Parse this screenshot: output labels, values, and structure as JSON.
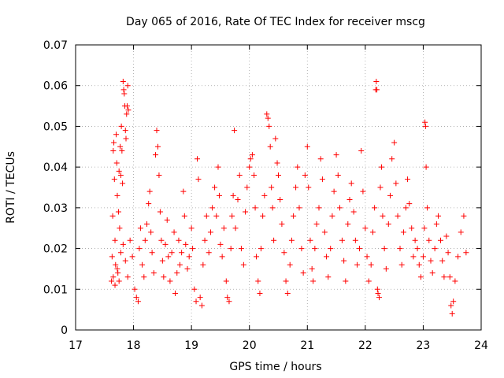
{
  "chart_data": {
    "type": "scatter",
    "title": "Day 065 of 2016, Rate Of TEC Index for receiver mscg",
    "xlabel": "GPS time / hours",
    "ylabel": "ROTI / TECUs",
    "xlim": [
      17,
      24
    ],
    "ylim": [
      0,
      0.07
    ],
    "xticks": [
      17,
      18,
      19,
      20,
      21,
      22,
      23,
      24
    ],
    "yticks": [
      0,
      0.01,
      0.02,
      0.03,
      0.04,
      0.05,
      0.06,
      0.07
    ],
    "xtick_labels": [
      "17",
      "18",
      "19",
      "20",
      "21",
      "22",
      "23",
      "24"
    ],
    "ytick_labels": [
      "0",
      "0.01",
      "0.02",
      "0.03",
      "0.04",
      "0.05",
      "0.06",
      "0.07"
    ],
    "grid": true,
    "marker": "+",
    "color": "#ff0000",
    "series": [
      {
        "name": "mscg",
        "points": [
          [
            17.62,
            0.012
          ],
          [
            17.63,
            0.018
          ],
          [
            17.64,
            0.028
          ],
          [
            17.65,
            0.044
          ],
          [
            17.66,
            0.046
          ],
          [
            17.67,
            0.037
          ],
          [
            17.68,
            0.022
          ],
          [
            17.69,
            0.016
          ],
          [
            17.7,
            0.048
          ],
          [
            17.71,
            0.041
          ],
          [
            17.72,
            0.033
          ],
          [
            17.73,
            0.014
          ],
          [
            17.74,
            0.029
          ],
          [
            17.75,
            0.039
          ],
          [
            17.76,
            0.025
          ],
          [
            17.77,
            0.045
          ],
          [
            17.78,
            0.038
          ],
          [
            17.79,
            0.05
          ],
          [
            17.8,
            0.044
          ],
          [
            17.81,
            0.036
          ],
          [
            17.82,
            0.061
          ],
          [
            17.83,
            0.059
          ],
          [
            17.84,
            0.058
          ],
          [
            17.85,
            0.055
          ],
          [
            17.86,
            0.049
          ],
          [
            17.87,
            0.047
          ],
          [
            17.88,
            0.053
          ],
          [
            17.89,
            0.055
          ],
          [
            17.9,
            0.06
          ],
          [
            17.91,
            0.054
          ],
          [
            17.65,
            0.013
          ],
          [
            17.68,
            0.011
          ],
          [
            17.72,
            0.015
          ],
          [
            17.75,
            0.012
          ],
          [
            17.78,
            0.019
          ],
          [
            17.82,
            0.021
          ],
          [
            17.86,
            0.017
          ],
          [
            17.9,
            0.013
          ],
          [
            17.94,
            0.022
          ],
          [
            17.98,
            0.018
          ],
          [
            18.02,
            0.01
          ],
          [
            18.05,
            0.008
          ],
          [
            18.08,
            0.007
          ],
          [
            18.1,
            0.02
          ],
          [
            18.12,
            0.025
          ],
          [
            18.15,
            0.016
          ],
          [
            18.18,
            0.013
          ],
          [
            18.2,
            0.022
          ],
          [
            18.23,
            0.026
          ],
          [
            18.26,
            0.031
          ],
          [
            18.28,
            0.034
          ],
          [
            18.3,
            0.024
          ],
          [
            18.32,
            0.019
          ],
          [
            18.35,
            0.014
          ],
          [
            18.38,
            0.043
          ],
          [
            18.4,
            0.049
          ],
          [
            18.42,
            0.045
          ],
          [
            18.44,
            0.038
          ],
          [
            18.46,
            0.029
          ],
          [
            18.48,
            0.022
          ],
          [
            18.5,
            0.017
          ],
          [
            18.52,
            0.013
          ],
          [
            18.55,
            0.021
          ],
          [
            18.58,
            0.027
          ],
          [
            18.6,
            0.018
          ],
          [
            18.63,
            0.012
          ],
          [
            18.66,
            0.019
          ],
          [
            18.7,
            0.024
          ],
          [
            18.72,
            0.009
          ],
          [
            18.75,
            0.014
          ],
          [
            18.78,
            0.022
          ],
          [
            18.8,
            0.016
          ],
          [
            18.83,
            0.019
          ],
          [
            18.86,
            0.034
          ],
          [
            18.88,
            0.028
          ],
          [
            18.9,
            0.021
          ],
          [
            18.93,
            0.015
          ],
          [
            18.96,
            0.018
          ],
          [
            19.0,
            0.025
          ],
          [
            19.02,
            0.02
          ],
          [
            19.05,
            0.01
          ],
          [
            19.08,
            0.007
          ],
          [
            19.1,
            0.042
          ],
          [
            19.12,
            0.037
          ],
          [
            19.15,
            0.008
          ],
          [
            19.18,
            0.006
          ],
          [
            19.2,
            0.016
          ],
          [
            19.23,
            0.022
          ],
          [
            19.26,
            0.028
          ],
          [
            19.3,
            0.019
          ],
          [
            19.33,
            0.024
          ],
          [
            19.36,
            0.03
          ],
          [
            19.4,
            0.035
          ],
          [
            19.43,
            0.028
          ],
          [
            19.46,
            0.04
          ],
          [
            19.48,
            0.033
          ],
          [
            19.5,
            0.021
          ],
          [
            19.53,
            0.018
          ],
          [
            19.56,
            0.025
          ],
          [
            19.6,
            0.012
          ],
          [
            19.62,
            0.008
          ],
          [
            19.65,
            0.007
          ],
          [
            19.68,
            0.02
          ],
          [
            19.7,
            0.028
          ],
          [
            19.72,
            0.033
          ],
          [
            19.74,
            0.049
          ],
          [
            19.76,
            0.025
          ],
          [
            19.8,
            0.032
          ],
          [
            19.83,
            0.038
          ],
          [
            19.86,
            0.02
          ],
          [
            19.9,
            0.016
          ],
          [
            19.93,
            0.029
          ],
          [
            19.96,
            0.035
          ],
          [
            20.0,
            0.04
          ],
          [
            20.02,
            0.042
          ],
          [
            20.05,
            0.043
          ],
          [
            20.08,
            0.038
          ],
          [
            20.1,
            0.03
          ],
          [
            20.12,
            0.018
          ],
          [
            20.15,
            0.012
          ],
          [
            20.18,
            0.009
          ],
          [
            20.2,
            0.02
          ],
          [
            20.23,
            0.028
          ],
          [
            20.26,
            0.033
          ],
          [
            20.3,
            0.053
          ],
          [
            20.32,
            0.052
          ],
          [
            20.34,
            0.05
          ],
          [
            20.36,
            0.045
          ],
          [
            20.38,
            0.035
          ],
          [
            20.4,
            0.03
          ],
          [
            20.42,
            0.022
          ],
          [
            20.45,
            0.047
          ],
          [
            20.48,
            0.041
          ],
          [
            20.5,
            0.038
          ],
          [
            20.53,
            0.032
          ],
          [
            20.56,
            0.026
          ],
          [
            20.6,
            0.019
          ],
          [
            20.63,
            0.012
          ],
          [
            20.66,
            0.009
          ],
          [
            20.7,
            0.016
          ],
          [
            20.73,
            0.022
          ],
          [
            20.76,
            0.028
          ],
          [
            20.8,
            0.035
          ],
          [
            20.83,
            0.04
          ],
          [
            20.86,
            0.03
          ],
          [
            20.9,
            0.02
          ],
          [
            20.93,
            0.014
          ],
          [
            20.96,
            0.038
          ],
          [
            21.0,
            0.045
          ],
          [
            21.02,
            0.035
          ],
          [
            21.05,
            0.022
          ],
          [
            21.08,
            0.015
          ],
          [
            21.1,
            0.012
          ],
          [
            21.13,
            0.02
          ],
          [
            21.16,
            0.026
          ],
          [
            21.2,
            0.03
          ],
          [
            21.23,
            0.042
          ],
          [
            21.26,
            0.037
          ],
          [
            21.3,
            0.024
          ],
          [
            21.33,
            0.018
          ],
          [
            21.36,
            0.013
          ],
          [
            21.4,
            0.02
          ],
          [
            21.43,
            0.028
          ],
          [
            21.46,
            0.034
          ],
          [
            21.5,
            0.043
          ],
          [
            21.53,
            0.038
          ],
          [
            21.56,
            0.03
          ],
          [
            21.6,
            0.022
          ],
          [
            21.63,
            0.017
          ],
          [
            21.66,
            0.012
          ],
          [
            21.7,
            0.026
          ],
          [
            21.73,
            0.032
          ],
          [
            21.76,
            0.036
          ],
          [
            21.8,
            0.029
          ],
          [
            21.83,
            0.022
          ],
          [
            21.86,
            0.016
          ],
          [
            21.9,
            0.02
          ],
          [
            21.93,
            0.044
          ],
          [
            21.96,
            0.034
          ],
          [
            22.0,
            0.025
          ],
          [
            22.03,
            0.018
          ],
          [
            22.06,
            0.012
          ],
          [
            22.1,
            0.016
          ],
          [
            22.13,
            0.024
          ],
          [
            22.16,
            0.03
          ],
          [
            22.18,
            0.059
          ],
          [
            22.19,
            0.061
          ],
          [
            22.2,
            0.059
          ],
          [
            22.21,
            0.01
          ],
          [
            22.22,
            0.009
          ],
          [
            22.24,
            0.008
          ],
          [
            22.26,
            0.035
          ],
          [
            22.28,
            0.04
          ],
          [
            22.3,
            0.028
          ],
          [
            22.33,
            0.02
          ],
          [
            22.36,
            0.015
          ],
          [
            22.4,
            0.026
          ],
          [
            22.43,
            0.033
          ],
          [
            22.46,
            0.042
          ],
          [
            22.5,
            0.046
          ],
          [
            22.53,
            0.036
          ],
          [
            22.56,
            0.028
          ],
          [
            22.6,
            0.02
          ],
          [
            22.63,
            0.016
          ],
          [
            22.66,
            0.024
          ],
          [
            22.7,
            0.03
          ],
          [
            22.73,
            0.037
          ],
          [
            22.76,
            0.031
          ],
          [
            22.8,
            0.025
          ],
          [
            22.83,
            0.018
          ],
          [
            22.86,
            0.022
          ],
          [
            22.9,
            0.02
          ],
          [
            22.93,
            0.016
          ],
          [
            22.96,
            0.013
          ],
          [
            23.0,
            0.018
          ],
          [
            23.02,
            0.025
          ],
          [
            23.03,
            0.051
          ],
          [
            23.04,
            0.05
          ],
          [
            23.05,
            0.04
          ],
          [
            23.07,
            0.03
          ],
          [
            23.1,
            0.022
          ],
          [
            23.13,
            0.017
          ],
          [
            23.16,
            0.014
          ],
          [
            23.2,
            0.02
          ],
          [
            23.23,
            0.026
          ],
          [
            23.26,
            0.028
          ],
          [
            23.3,
            0.022
          ],
          [
            23.33,
            0.017
          ],
          [
            23.36,
            0.013
          ],
          [
            23.4,
            0.023
          ],
          [
            23.43,
            0.019
          ],
          [
            23.46,
            0.013
          ],
          [
            23.48,
            0.006
          ],
          [
            23.5,
            0.004
          ],
          [
            23.52,
            0.007
          ],
          [
            23.55,
            0.012
          ],
          [
            23.6,
            0.018
          ],
          [
            23.65,
            0.024
          ],
          [
            23.7,
            0.028
          ],
          [
            23.74,
            0.019
          ]
        ]
      }
    ]
  }
}
